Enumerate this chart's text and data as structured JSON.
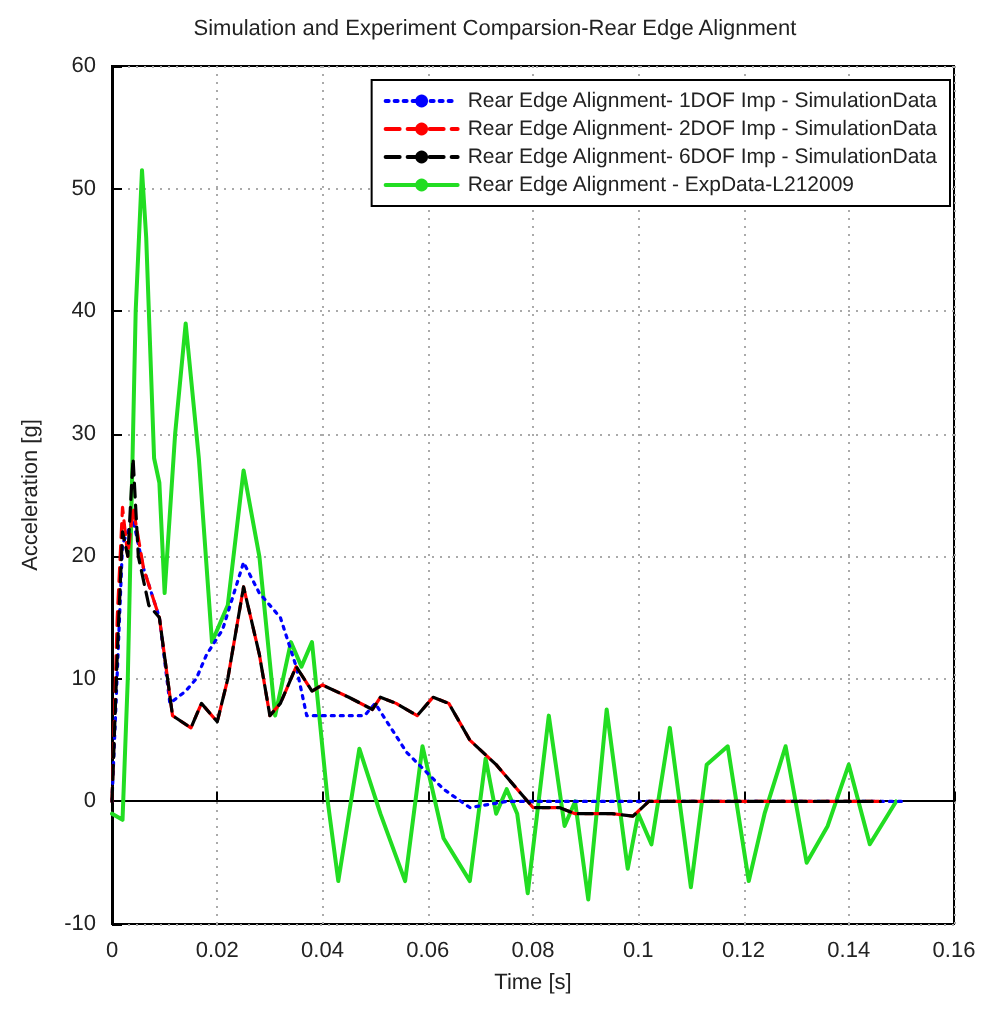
{
  "chart_data": {
    "type": "line",
    "title": "Simulation and Experiment Comparsion-Rear Edge Alignment",
    "xlabel": "Time [s]",
    "ylabel": "Acceleration [g]",
    "xlim": [
      0,
      0.16
    ],
    "xticks": [
      0,
      0.02,
      0.04,
      0.06,
      0.08,
      0.1,
      0.12,
      0.14,
      0.16
    ],
    "ylim": [
      -10,
      60
    ],
    "yticks": [
      -10,
      0,
      10,
      20,
      30,
      40,
      50,
      60
    ],
    "grid": true,
    "legend": "top right",
    "marker": "none",
    "series": [
      {
        "name": "Rear Edge Alignment- 1DOF Imp - SimulationData",
        "color": "#0000ff",
        "line_style": "dotted",
        "x": [
          0,
          0.002,
          0.004,
          0.006,
          0.009,
          0.011,
          0.014,
          0.016,
          0.018,
          0.021,
          0.025,
          0.028,
          0.032,
          0.035,
          0.037,
          0.043,
          0.048,
          0.05,
          0.056,
          0.063,
          0.068,
          0.075,
          0.08,
          0.09,
          0.1,
          0.12,
          0.15
        ],
        "values": [
          0,
          21,
          23,
          19,
          15,
          8,
          9,
          10,
          12,
          14,
          19.5,
          17,
          15,
          11,
          7,
          7,
          7,
          8,
          4,
          1,
          -0.5,
          0,
          0,
          0,
          0,
          0,
          0
        ]
      },
      {
        "name": "Rear Edge Alignment- 2DOF Imp - SimulationData",
        "color": "#ff0000",
        "line_style": "dashed",
        "x": [
          0,
          0.001,
          0.002,
          0.003,
          0.004,
          0.006,
          0.009,
          0.0115,
          0.015,
          0.017,
          0.02,
          0.022,
          0.025,
          0.028,
          0.03,
          0.032,
          0.035,
          0.038,
          0.04,
          0.045,
          0.0495,
          0.051,
          0.054,
          0.058,
          0.061,
          0.064,
          0.068,
          0.073,
          0.077,
          0.08,
          0.085,
          0.088,
          0.095,
          0.099,
          0.102,
          0.12,
          0.146
        ],
        "values": [
          0,
          15,
          24,
          20,
          24,
          19,
          15,
          7,
          6,
          8,
          6.5,
          10,
          17.5,
          12,
          7,
          8,
          11,
          9,
          9.5,
          8.5,
          7.5,
          8.5,
          8,
          7,
          8.5,
          8,
          5,
          3,
          1,
          -0.5,
          -0.5,
          -1,
          -1,
          -1.2,
          0,
          0,
          0
        ]
      },
      {
        "name": "Rear Edge Alignment- 6DOF Imp - SimulationData",
        "color": "#000000",
        "line_style": "dashed",
        "x": [
          0,
          0.001,
          0.002,
          0.003,
          0.004,
          0.005,
          0.007,
          0.009,
          0.0115,
          0.015,
          0.017,
          0.02,
          0.022,
          0.025,
          0.028,
          0.03,
          0.032,
          0.035,
          0.038,
          0.04,
          0.045,
          0.0495,
          0.051,
          0.054,
          0.058,
          0.061,
          0.064,
          0.068,
          0.073,
          0.077,
          0.08,
          0.085,
          0.088,
          0.095,
          0.099,
          0.102,
          0.12,
          0.146
        ],
        "values": [
          0,
          12,
          22,
          20,
          28,
          20,
          16,
          15,
          7,
          6,
          8,
          6.5,
          10,
          17.5,
          12,
          7,
          8,
          11,
          9,
          9.5,
          8.5,
          7.5,
          8.5,
          8,
          7,
          8.5,
          8,
          5,
          3,
          1,
          -0.5,
          -0.5,
          -1,
          -1,
          -1.2,
          0,
          0,
          0
        ]
      },
      {
        "name": "Rear Edge Alignment - ExpData-L212009",
        "color": "#22dd22",
        "line_style": "solid",
        "x": [
          0,
          0.002,
          0.003,
          0.0045,
          0.0057,
          0.0065,
          0.008,
          0.009,
          0.01,
          0.012,
          0.014,
          0.0165,
          0.019,
          0.022,
          0.025,
          0.028,
          0.031,
          0.034,
          0.036,
          0.038,
          0.041,
          0.043,
          0.047,
          0.051,
          0.0557,
          0.059,
          0.063,
          0.068,
          0.071,
          0.073,
          0.075,
          0.077,
          0.079,
          0.083,
          0.086,
          0.088,
          0.0905,
          0.094,
          0.098,
          0.1,
          0.1025,
          0.106,
          0.11,
          0.113,
          0.117,
          0.121,
          0.124,
          0.128,
          0.132,
          0.136,
          0.14,
          0.144,
          0.149
        ],
        "values": [
          -1,
          -1.5,
          10,
          40,
          51.5,
          46,
          28,
          26,
          17,
          30,
          39,
          28,
          13,
          16,
          27,
          20,
          7,
          13,
          11,
          13,
          0,
          -6.5,
          4.3,
          -1,
          -6.5,
          4.5,
          -3,
          -6.5,
          3.5,
          -1,
          1,
          -1,
          -7.5,
          7,
          -2,
          0,
          -8,
          7.5,
          -5.5,
          -1,
          -3.5,
          6,
          -7,
          3,
          4.5,
          -6.5,
          -1,
          4.5,
          -5,
          -2,
          3,
          -3.5,
          0
        ]
      }
    ]
  }
}
